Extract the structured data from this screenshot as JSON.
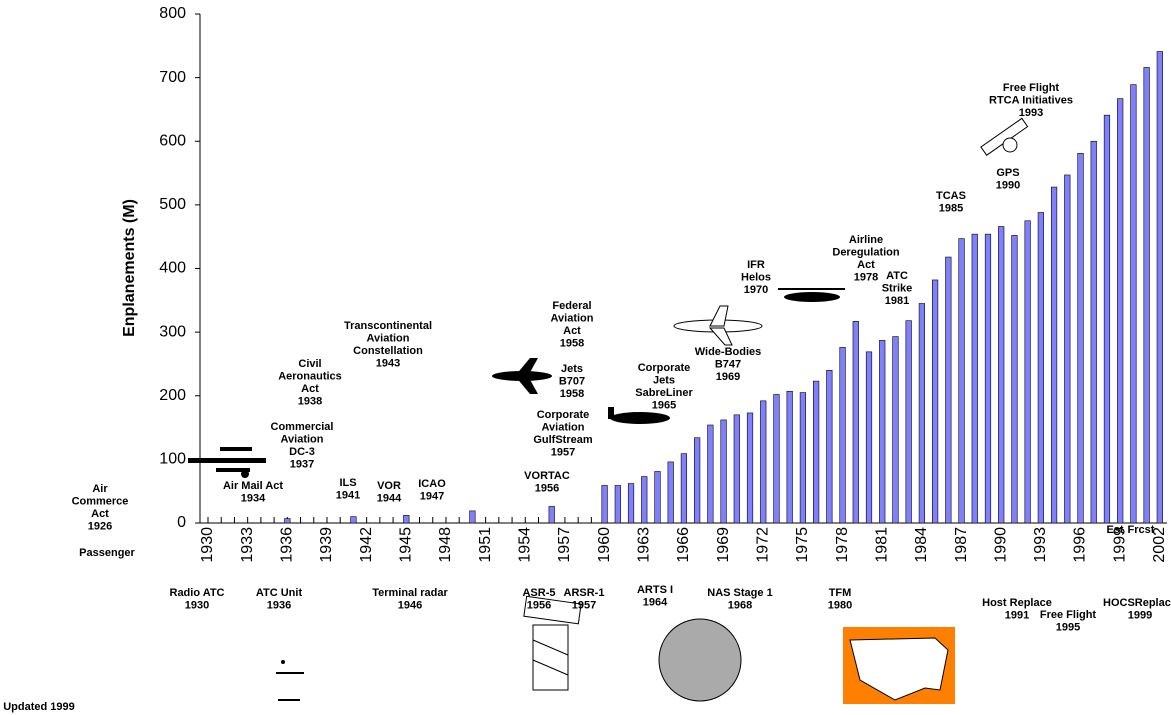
{
  "chart_data": {
    "type": "bar",
    "y_label": "Enplanements (M)",
    "categories": [
      "1930",
      null,
      null,
      "1933",
      null,
      null,
      "1936",
      null,
      null,
      "1939",
      null,
      null,
      "1942",
      null,
      null,
      "1945",
      null,
      null,
      "1948",
      null,
      null,
      "1951",
      null,
      null,
      "1954",
      null,
      null,
      "1957",
      null,
      null,
      "1960",
      null,
      null,
      "1963",
      null,
      null,
      "1966",
      null,
      null,
      "1969",
      null,
      null,
      "1972",
      null,
      null,
      "1975",
      null,
      null,
      "1978",
      null,
      null,
      "1981",
      null,
      null,
      "1984",
      null,
      null,
      "1987",
      null,
      null,
      "1990",
      null,
      null,
      "1993",
      null,
      null,
      "1996",
      null,
      null,
      "1999",
      null,
      null,
      "2002"
    ],
    "values": [
      null,
      null,
      null,
      null,
      null,
      null,
      7,
      null,
      null,
      null,
      null,
      10,
      null,
      null,
      null,
      12,
      null,
      null,
      null,
      null,
      19,
      null,
      null,
      null,
      null,
      null,
      26,
      null,
      null,
      null,
      59,
      59,
      62,
      73,
      81,
      96,
      109,
      134,
      154,
      162,
      170,
      173,
      192,
      202,
      207,
      205,
      223,
      240,
      276,
      317,
      269,
      287,
      293,
      318,
      345,
      382,
      418,
      447,
      454,
      454,
      466,
      452,
      475,
      488,
      528,
      547,
      581,
      600,
      641,
      667,
      689,
      716,
      741
    ],
    "color": "#8080ff",
    "ylim": [
      0,
      800
    ],
    "yticks": [
      0,
      100,
      200,
      300,
      400,
      500,
      600,
      700,
      800
    ],
    "grid": false,
    "annotations": [
      {
        "lines": [
          "Air",
          "Commerce",
          "Act",
          "1926"
        ]
      },
      {
        "lines": [
          "Air Mail Act",
          "1934"
        ]
      },
      {
        "lines": [
          "Commercial",
          "Aviation",
          "DC-3",
          "1937"
        ]
      },
      {
        "lines": [
          "Civil",
          "Aeronautics",
          "Act",
          "1938"
        ]
      },
      {
        "lines": [
          "Transcontinental",
          "Aviation",
          "Constellation",
          "1943"
        ]
      },
      {
        "lines": [
          "ILS",
          "1941"
        ]
      },
      {
        "lines": [
          "VOR",
          "1944"
        ]
      },
      {
        "lines": [
          "ICAO",
          "1947"
        ]
      },
      {
        "lines": [
          "VORTAC",
          "1956"
        ]
      },
      {
        "lines": [
          "Federal",
          "Aviation",
          "Act",
          "1958"
        ]
      },
      {
        "lines": [
          "Jets",
          "B707",
          "1958"
        ]
      },
      {
        "lines": [
          "Corporate",
          "Aviation",
          "GulfStream",
          "1957"
        ]
      },
      {
        "lines": [
          "Corporate",
          "Jets",
          "SabreLiner",
          "1965"
        ]
      },
      {
        "lines": [
          "Wide-Bodies",
          "B747",
          "1969"
        ]
      },
      {
        "lines": [
          "IFR",
          "Helos",
          "1970"
        ]
      },
      {
        "lines": [
          "Airline",
          "Deregulation",
          "Act",
          "1978"
        ]
      },
      {
        "lines": [
          "ATC",
          "Strike",
          "1981"
        ]
      },
      {
        "lines": [
          "TCAS",
          "1985"
        ]
      },
      {
        "lines": [
          "GPS",
          "1990"
        ]
      },
      {
        "lines": [
          "Free Flight",
          "RTCA Initiatives",
          "1993"
        ]
      },
      {
        "lines": [
          "Est"
        ]
      },
      {
        "lines": [
          "Frcst"
        ]
      },
      {
        "lines": [
          "Radio ATC",
          "1930"
        ]
      },
      {
        "lines": [
          "ATC Unit",
          "1936"
        ]
      },
      {
        "lines": [
          "Terminal radar",
          "1946"
        ]
      },
      {
        "lines": [
          "ASR-5",
          "1956"
        ]
      },
      {
        "lines": [
          "ARSR-1",
          "1957"
        ]
      },
      {
        "lines": [
          "ARTS I",
          "1964"
        ]
      },
      {
        "lines": [
          "NAS Stage 1",
          "1968"
        ]
      },
      {
        "lines": [
          "TFM",
          "1980"
        ]
      },
      {
        "lines": [
          "Host Replace",
          "1991"
        ]
      },
      {
        "lines": [
          "Free Flight",
          "1995"
        ]
      },
      {
        "lines": [
          "HOCSReplace",
          "1999"
        ]
      },
      {
        "lines": [
          "Passenger"
        ]
      },
      {
        "lines": [
          "Updated 1999"
        ]
      }
    ]
  }
}
